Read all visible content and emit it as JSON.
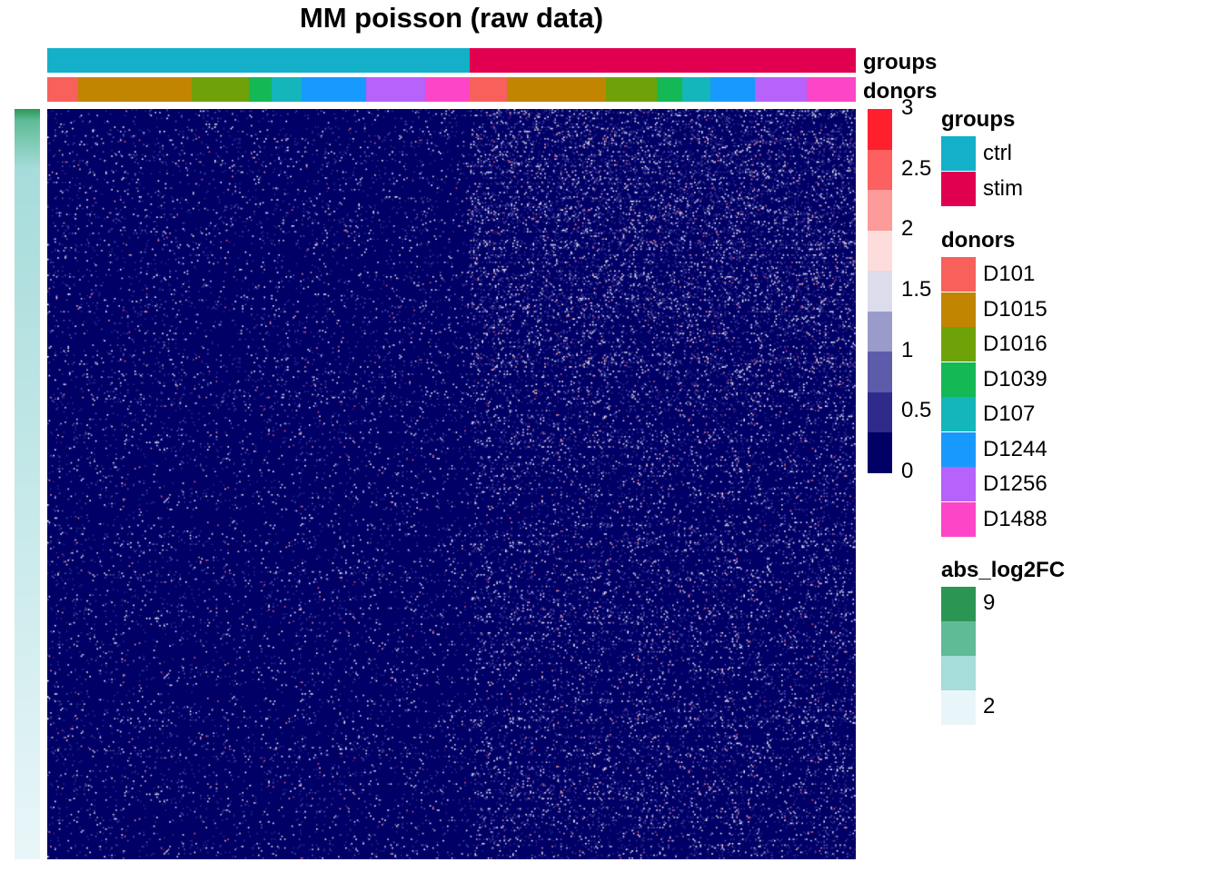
{
  "chart_data": {
    "type": "heatmap",
    "title": "MM poisson (raw data)",
    "color_scale": {
      "ticks": [
        "3",
        "2.5",
        "2",
        "1.5",
        "1",
        "0.5",
        "0"
      ],
      "colors_top_to_bottom": [
        "#ff1f2d",
        "#fd6060",
        "#fd9a9a",
        "#fddcdc",
        "#dcdcec",
        "#9b9bcb",
        "#5d5cab",
        "#2e2b8b",
        "#000066"
      ],
      "range": [
        0,
        3
      ]
    },
    "column_tracks": {
      "groups": {
        "label": "groups",
        "segments": [
          {
            "name": "ctrl",
            "color": "#14afc9",
            "fraction": 0.522
          },
          {
            "name": "stim",
            "color": "#e0004f",
            "fraction": 0.478
          }
        ]
      },
      "donors": {
        "label": "donors",
        "segments": [
          {
            "name": "D101",
            "color": "#f8605c",
            "fraction": 0.038
          },
          {
            "name": "D1015",
            "color": "#c18500",
            "fraction": 0.141
          },
          {
            "name": "D1016",
            "color": "#6fa209",
            "fraction": 0.071
          },
          {
            "name": "D1039",
            "color": "#14b855",
            "fraction": 0.027
          },
          {
            "name": "D107",
            "color": "#14b5bb",
            "fraction": 0.038
          },
          {
            "name": "D1244",
            "color": "#1799fd",
            "fraction": 0.079
          },
          {
            "name": "D1256",
            "color": "#b662fb",
            "fraction": 0.073
          },
          {
            "name": "D1488",
            "color": "#fd45c8",
            "fraction": 0.056
          },
          {
            "name": "D101",
            "color": "#f8605c",
            "fraction": 0.046
          },
          {
            "name": "D1015",
            "color": "#c18500",
            "fraction": 0.122
          },
          {
            "name": "D1016",
            "color": "#6fa209",
            "fraction": 0.063
          },
          {
            "name": "D1039",
            "color": "#14b855",
            "fraction": 0.031
          },
          {
            "name": "D107",
            "color": "#14b5bb",
            "fraction": 0.035
          },
          {
            "name": "D1244",
            "color": "#1799fd",
            "fraction": 0.055
          },
          {
            "name": "D1256",
            "color": "#b662fb",
            "fraction": 0.065
          },
          {
            "name": "D1488",
            "color": "#fd45c8",
            "fraction": 0.06
          }
        ]
      }
    },
    "row_annotation": {
      "label": "abs_log2FC",
      "range": [
        2,
        9
      ],
      "legend_ticks": [
        "9",
        "2"
      ],
      "legend_colors": [
        "#2b9654",
        "#5ebb96",
        "#a6dcda",
        "#e9f6f9"
      ]
    },
    "legends": {
      "groups": {
        "title": "groups",
        "items": [
          {
            "label": "ctrl",
            "color": "#14afc9"
          },
          {
            "label": "stim",
            "color": "#e0004f"
          }
        ]
      },
      "donors": {
        "title": "donors",
        "items": [
          {
            "label": "D101",
            "color": "#f8605c"
          },
          {
            "label": "D1015",
            "color": "#c18500"
          },
          {
            "label": "D1016",
            "color": "#6fa209"
          },
          {
            "label": "D1039",
            "color": "#14b855"
          },
          {
            "label": "D107",
            "color": "#14b5bb"
          },
          {
            "label": "D1244",
            "color": "#1799fd"
          },
          {
            "label": "D1256",
            "color": "#b662fb"
          },
          {
            "label": "D1488",
            "color": "#fd45c8"
          }
        ]
      },
      "abs_log2FC": {
        "title": "abs_log2FC"
      }
    },
    "background_value_color": "#000066",
    "density": {
      "ctrl": 0.05,
      "stim": 0.11
    }
  }
}
